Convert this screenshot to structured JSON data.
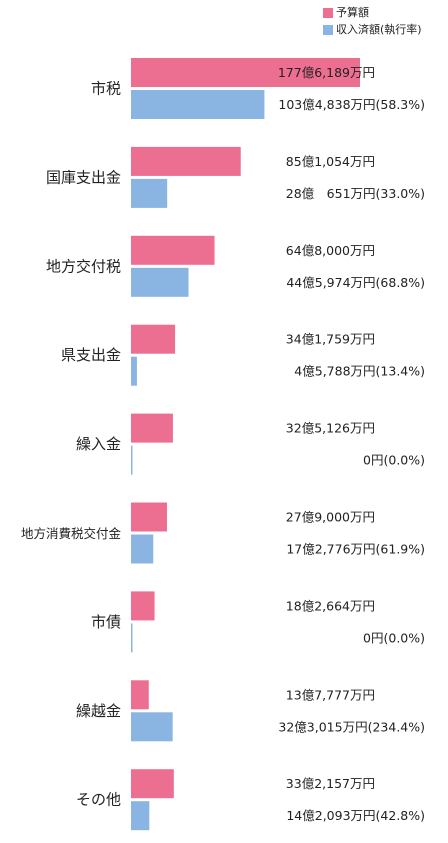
{
  "colors": {
    "budget": "#EC6F91",
    "actual": "#8AB4E2"
  },
  "chart_data": {
    "type": "bar",
    "orientation": "horizontal",
    "series": [
      {
        "name": "予算額",
        "values": [
          1776189,
          851054,
          648000,
          341759,
          325126,
          279000,
          182664,
          137777,
          332157
        ]
      },
      {
        "name": "収入済額(執行率)",
        "values": [
          1034838,
          280651,
          445974,
          45788,
          0,
          172776,
          0,
          323015,
          142093
        ]
      }
    ],
    "categories": [
      "市税",
      "国庫支出金",
      "地方交付税",
      "県支出金",
      "繰入金",
      "地方消費税交付金",
      "市債",
      "繰越金",
      "その他"
    ],
    "budget_labels": [
      "177億6,189万円",
      "85億1,054万円",
      "64億8,000万円",
      "34億1,759万円",
      "32億5,126万円",
      "27億9,000万円",
      "18億2,664万円",
      "13億7,777万円",
      "33億2,157万円"
    ],
    "actual_labels": [
      "103億4,838万円(58.3%)",
      "28億　651万円(33.0%)",
      "44億5,974万円(68.8%)",
      "4億5,788万円(13.4%)",
      "0円(0.0%)",
      "17億2,776万円(61.9%)",
      "0円(0.0%)",
      "32億3,015万円(234.4%)",
      "14億2,093万円(42.8%)"
    ],
    "legend_position": "top-right",
    "xlim": [
      0,
      1776189
    ],
    "grid": false
  }
}
